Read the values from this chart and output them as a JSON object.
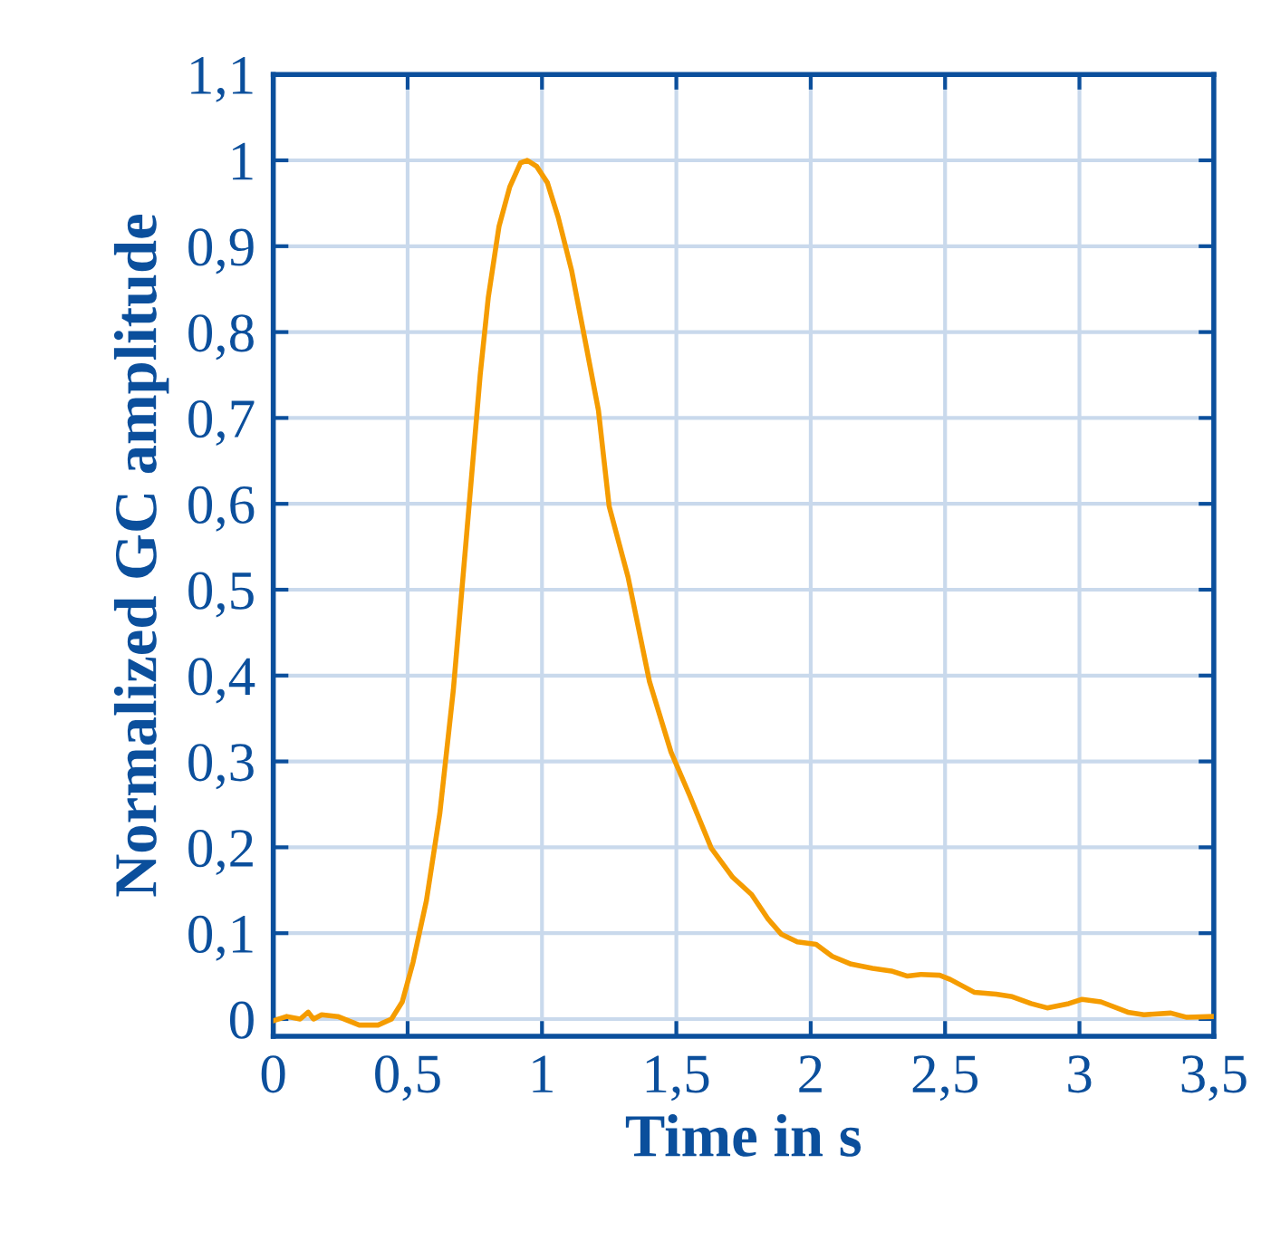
{
  "chart_data": {
    "type": "line",
    "xlabel": "Time in s",
    "ylabel": "Normalized GC amplitude",
    "x": [
      0,
      0.05,
      0.1,
      0.13,
      0.15,
      0.18,
      0.24,
      0.32,
      0.39,
      0.44,
      0.48,
      0.52,
      0.57,
      0.62,
      0.67,
      0.72,
      0.77,
      0.8,
      0.84,
      0.88,
      0.92,
      0.945,
      0.98,
      1.02,
      1.06,
      1.11,
      1.16,
      1.21,
      1.25,
      1.32,
      1.4,
      1.48,
      1.55,
      1.63,
      1.71,
      1.78,
      1.84,
      1.89,
      1.95,
      2.02,
      2.08,
      2.15,
      2.23,
      2.3,
      2.36,
      2.41,
      2.48,
      2.52,
      2.61,
      2.69,
      2.75,
      2.82,
      2.88,
      2.96,
      3.01,
      3.08,
      3.18,
      3.24,
      3.34,
      3.4,
      3.5
    ],
    "series": [
      {
        "color": "#f59c00",
        "values": [
          -0.002,
          0.003,
          0,
          0.008,
          0,
          0.005,
          0.003,
          -0.007,
          -0.007,
          0,
          0.02,
          0.066,
          0.138,
          0.24,
          0.383,
          0.566,
          0.75,
          0.84,
          0.923,
          0.969,
          0.997,
          1.0,
          0.993,
          0.974,
          0.934,
          0.872,
          0.791,
          0.709,
          0.597,
          0.515,
          0.393,
          0.311,
          0.26,
          0.199,
          0.165,
          0.145,
          0.117,
          0.099,
          0.09,
          0.087,
          0.073,
          0.064,
          0.059,
          0.056,
          0.05,
          0.052,
          0.051,
          0.046,
          0.031,
          0.029,
          0.026,
          0.018,
          0.013,
          0.018,
          0.023,
          0.02,
          0.008,
          0.005,
          0.007,
          0.002,
          0.003
        ]
      }
    ],
    "xlim": [
      0,
      3.5
    ],
    "ylim": [
      -0.02,
      1.1
    ],
    "xticks": [
      0,
      {
        "value": 0.5,
        "label": "0,5"
      },
      1,
      {
        "value": 1.5,
        "label": "1,5"
      },
      2,
      {
        "value": 2.5,
        "label": "2,5"
      },
      3,
      {
        "value": 3.5,
        "label": "3,5"
      }
    ],
    "yticks": [
      0,
      {
        "value": 0.1,
        "label": "0,1"
      },
      {
        "value": 0.2,
        "label": "0,2"
      },
      {
        "value": 0.3,
        "label": "0,3"
      },
      {
        "value": 0.4,
        "label": "0,4"
      },
      {
        "value": 0.5,
        "label": "0,5"
      },
      {
        "value": 0.6,
        "label": "0,6"
      },
      {
        "value": 0.7,
        "label": "0,7"
      },
      {
        "value": 0.8,
        "label": "0,8"
      },
      {
        "value": 0.9,
        "label": "0,9"
      },
      1,
      {
        "value": 1.1,
        "label": "1,1"
      }
    ],
    "grid": true,
    "marker": "none",
    "line_style": "solid"
  }
}
